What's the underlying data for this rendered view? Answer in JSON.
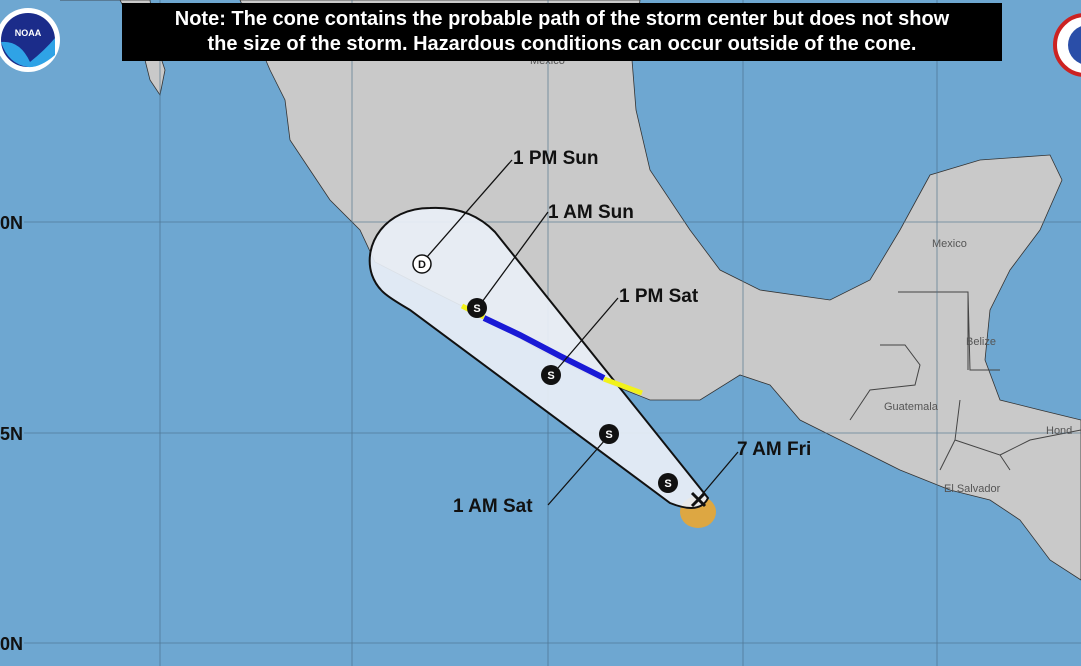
{
  "note": {
    "line1": "Note: The cone contains the probable path of the storm center but does not show",
    "line2": "the size of the storm. Hazardous conditions can occur outside of the cone."
  },
  "logos": {
    "left": "NOAA",
    "right": "NATIONAL WEATHER SERVICE"
  },
  "latitude_labels": [
    "0N",
    "5N",
    "0N"
  ],
  "country_labels": {
    "mexico_top": "Mexico",
    "mexico": "Mexico",
    "belize": "Belize",
    "guatemala": "Guatemala",
    "honduras": "Hond",
    "el_salvador": "El Salvador"
  },
  "forecast_points": [
    {
      "time": "7 AM Fri",
      "symbol": "X",
      "type": "current"
    },
    {
      "time": "",
      "symbol": "S",
      "type": "tropical storm"
    },
    {
      "time": "1 AM Sat",
      "symbol": "S",
      "type": "tropical storm"
    },
    {
      "time": "1 PM Sat",
      "symbol": "S",
      "type": "tropical storm"
    },
    {
      "time": "1 AM Sun",
      "symbol": "S",
      "type": "tropical storm"
    },
    {
      "time": "1 PM Sun",
      "symbol": "D",
      "type": "tropical depression"
    }
  ],
  "colors": {
    "ocean": "#6ea7d1",
    "land": "#c9c9c9",
    "cone": "#e9eff6",
    "warning": "#1a1ad6",
    "watch": "#f2f21a",
    "current_wind": "#e3a63a"
  }
}
